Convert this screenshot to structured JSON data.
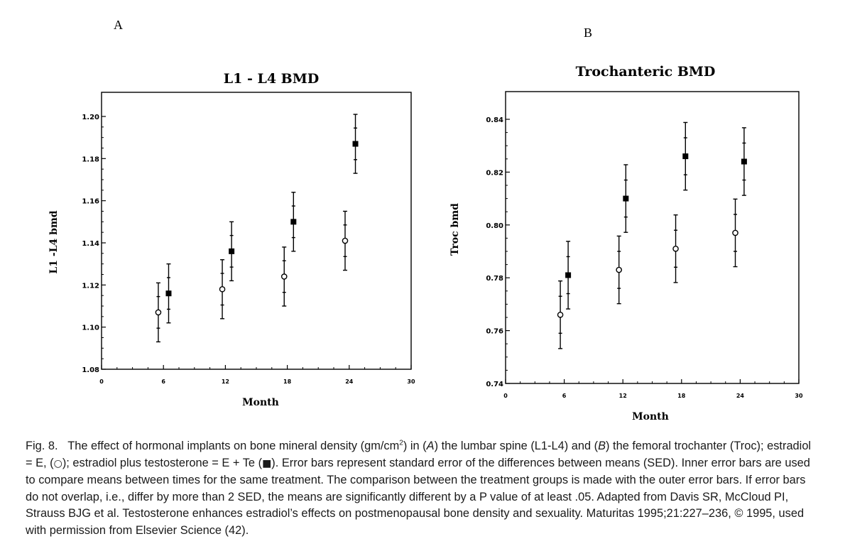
{
  "chart_data": [
    {
      "type": "scatter",
      "panel": "A",
      "title": "L1 - L4  BMD",
      "xlabel": "Month",
      "ylabel": "L1 -L4 bmd",
      "xlim": [
        0,
        30
      ],
      "ylim": [
        1.08,
        1.2
      ],
      "xticks": [
        0,
        6,
        12,
        18,
        24,
        30
      ],
      "yticks": [
        1.08,
        1.1,
        1.12,
        1.14,
        1.16,
        1.18,
        1.2
      ],
      "ytick_labels": [
        "1.08",
        "1.10",
        "1.12",
        "1.14",
        "1.16",
        "1.18",
        "1.20"
      ],
      "series": [
        {
          "symbol": "open-circle",
          "x": [
            5.5,
            11.7,
            17.7,
            23.6
          ],
          "y": [
            1.107,
            1.118,
            1.124,
            1.141
          ],
          "inner_err": [
            0.0075,
            0.0075,
            0.0075,
            0.0075
          ],
          "outer_err": [
            0.014,
            0.014,
            0.014,
            0.014
          ]
        },
        {
          "symbol": "filled-square",
          "x": [
            6.5,
            12.6,
            18.6,
            24.6
          ],
          "y": [
            1.116,
            1.136,
            1.15,
            1.187
          ],
          "inner_err": [
            0.0075,
            0.0075,
            0.0075,
            0.0075
          ],
          "outer_err": [
            0.014,
            0.014,
            0.014,
            0.014
          ]
        }
      ]
    },
    {
      "type": "scatter",
      "panel": "B",
      "title": "Trochanteric BMD",
      "xlabel": "Month",
      "ylabel": "Troc bmd",
      "xlim": [
        0,
        30
      ],
      "ylim": [
        0.74,
        0.85
      ],
      "xticks": [
        0,
        6,
        12,
        18,
        24,
        30
      ],
      "yticks": [
        0.74,
        0.76,
        0.78,
        0.8,
        0.82,
        0.84
      ],
      "ytick_labels": [
        "0.74",
        "0.76",
        "0.78",
        "0.80",
        "0.82",
        "0.84"
      ],
      "series": [
        {
          "symbol": "open-circle",
          "x": [
            5.6,
            11.6,
            17.4,
            23.5
          ],
          "y": [
            0.766,
            0.783,
            0.791,
            0.797
          ],
          "inner_err": [
            0.007,
            0.007,
            0.007,
            0.007
          ],
          "outer_err": [
            0.0128,
            0.0128,
            0.0128,
            0.0128
          ]
        },
        {
          "symbol": "filled-square",
          "x": [
            6.4,
            12.3,
            18.4,
            24.4
          ],
          "y": [
            0.781,
            0.81,
            0.826,
            0.824
          ],
          "inner_err": [
            0.007,
            0.007,
            0.007,
            0.007
          ],
          "outer_err": [
            0.0128,
            0.0128,
            0.0128,
            0.0128
          ]
        }
      ]
    }
  ],
  "caption": {
    "label": "Fig. 8.",
    "p1": "The effect of hormonal implants on bone mineral density (gm/cm",
    "sup": "2",
    "p2": ") in (",
    "a": "A",
    "p3": ") the lumbar spine (L1-L4) and (",
    "b": "B",
    "p4": ") the femoral trochanter (Troc); estradiol = E, (",
    "circle": "○",
    "p5": "); estradiol plus testosterone = E + Te (",
    "square": "■",
    "p6": "). Error bars represent standard error of the differences between means (SED). Inner error bars are used to compare means between times for the same treatment. The comparison between the treatment groups is made with the outer error bars. If error bars do not overlap, i.e., differ by more than 2 SED, the means are significantly different by a P value of at least .05. Adapted from Davis SR, McCloud PI, Strauss BJG et al. Testosterone enhances estradiol’s effects on postmenopausal bone density and sexuality. Maturitas 1995;21:227–236, © 1995, used with permission from Elsevier Science (42)."
  }
}
